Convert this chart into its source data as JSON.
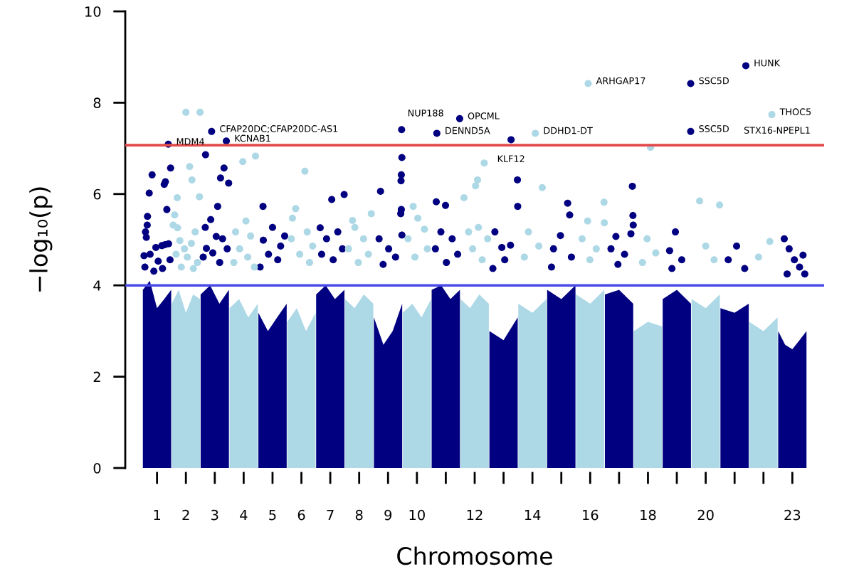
{
  "chart_data": {
    "type": "scatter",
    "xlabel": "Chromosome",
    "ylabel": "−log₁₀(p)",
    "xlim": [
      -0.1,
      24.1
    ],
    "ylim": [
      0,
      10
    ],
    "xticks": [
      1,
      2,
      3,
      4,
      5,
      6,
      7,
      8,
      9,
      10,
      {
        "value": 11,
        "label": null
      },
      12,
      {
        "value": 13,
        "label": null
      },
      14,
      {
        "value": 15,
        "label": null
      },
      16,
      {
        "value": 17,
        "label": null
      },
      18,
      {
        "value": 19,
        "label": null
      },
      20,
      {
        "value": 21,
        "label": null
      },
      {
        "value": 22,
        "label": null
      },
      23
    ],
    "yticks": [
      0,
      2,
      4,
      6,
      8,
      10
    ],
    "grid": false,
    "legend": false,
    "ref_lines": [
      {
        "axis": "y",
        "value": 7.07,
        "color": "#e34a4a",
        "line_style": "solid"
      },
      {
        "axis": "y",
        "value": 4,
        "color": "#4a4ae8",
        "line_style": "solid"
      }
    ],
    "series": [
      {
        "type": "area",
        "color": "#000080",
        "x": [
          0.51,
          0.75,
          1,
          1.25,
          1.49
        ],
        "values": [
          3.9,
          4.1,
          3.5,
          3.7,
          3.9
        ]
      },
      {
        "type": "area",
        "color": "#add8e6",
        "x": [
          1.51,
          1.75,
          2,
          2.25,
          2.49
        ],
        "values": [
          3.6,
          3.9,
          3.4,
          3.8,
          3.7
        ]
      },
      {
        "type": "area",
        "color": "#000080",
        "x": [
          2.51,
          2.84,
          3.16,
          3.49
        ],
        "values": [
          3.8,
          4.0,
          3.6,
          3.9
        ]
      },
      {
        "type": "area",
        "color": "#add8e6",
        "x": [
          3.51,
          3.84,
          4.16,
          4.49
        ],
        "values": [
          3.5,
          3.7,
          3.3,
          3.6
        ]
      },
      {
        "type": "area",
        "color": "#000080",
        "x": [
          4.51,
          4.84,
          5.16,
          5.49
        ],
        "values": [
          3.4,
          3.0,
          3.3,
          3.6
        ]
      },
      {
        "type": "area",
        "color": "#add8e6",
        "x": [
          5.51,
          5.84,
          6.16,
          6.49
        ],
        "values": [
          3.2,
          3.5,
          3.0,
          3.4
        ]
      },
      {
        "type": "area",
        "color": "#000080",
        "x": [
          6.51,
          6.84,
          7.16,
          7.49
        ],
        "values": [
          3.8,
          4.0,
          3.7,
          3.9
        ]
      },
      {
        "type": "area",
        "color": "#add8e6",
        "x": [
          7.51,
          7.84,
          8.16,
          8.49
        ],
        "values": [
          3.7,
          3.5,
          3.8,
          3.6
        ]
      },
      {
        "type": "area",
        "color": "#000080",
        "x": [
          8.51,
          8.84,
          9.16,
          9.49
        ],
        "values": [
          3.3,
          2.7,
          3.0,
          3.6
        ]
      },
      {
        "type": "area",
        "color": "#add8e6",
        "x": [
          9.51,
          9.84,
          10.16,
          10.49
        ],
        "values": [
          3.4,
          3.6,
          3.3,
          3.7
        ]
      },
      {
        "type": "area",
        "color": "#000080",
        "x": [
          10.51,
          10.84,
          11.16,
          11.49
        ],
        "values": [
          3.9,
          4.0,
          3.7,
          3.9
        ]
      },
      {
        "type": "area",
        "color": "#add8e6",
        "x": [
          11.51,
          11.84,
          12.16,
          12.49
        ],
        "values": [
          3.7,
          3.5,
          3.8,
          3.6
        ]
      },
      {
        "type": "area",
        "color": "#000080",
        "x": [
          12.51,
          13,
          13.49
        ],
        "values": [
          3.0,
          2.8,
          3.3
        ]
      },
      {
        "type": "area",
        "color": "#add8e6",
        "x": [
          13.51,
          14,
          14.49
        ],
        "values": [
          3.6,
          3.4,
          3.7
        ]
      },
      {
        "type": "area",
        "color": "#000080",
        "x": [
          14.51,
          15,
          15.49
        ],
        "values": [
          3.9,
          3.7,
          4.0
        ]
      },
      {
        "type": "area",
        "color": "#add8e6",
        "x": [
          15.51,
          16,
          16.49
        ],
        "values": [
          3.8,
          3.6,
          3.9
        ]
      },
      {
        "type": "area",
        "color": "#000080",
        "x": [
          16.51,
          17,
          17.49
        ],
        "values": [
          3.8,
          3.9,
          3.6
        ]
      },
      {
        "type": "area",
        "color": "#add8e6",
        "x": [
          17.51,
          18,
          18.49
        ],
        "values": [
          3.0,
          3.2,
          3.1
        ]
      },
      {
        "type": "area",
        "color": "#000080",
        "x": [
          18.51,
          19,
          19.49
        ],
        "values": [
          3.7,
          3.9,
          3.6
        ]
      },
      {
        "type": "area",
        "color": "#add8e6",
        "x": [
          19.51,
          20,
          20.49
        ],
        "values": [
          3.7,
          3.5,
          3.8
        ]
      },
      {
        "type": "area",
        "color": "#000080",
        "x": [
          20.51,
          21,
          21.49
        ],
        "values": [
          3.5,
          3.4,
          3.6
        ]
      },
      {
        "type": "area",
        "color": "#add8e6",
        "x": [
          21.51,
          22,
          22.49
        ],
        "values": [
          3.2,
          3.0,
          3.3
        ]
      },
      {
        "type": "area",
        "color": "#000080",
        "x": [
          22.51,
          22.75,
          23,
          23.25,
          23.49
        ],
        "values": [
          3.0,
          2.7,
          2.6,
          2.8,
          3.0
        ]
      },
      {
        "color": "#000080",
        "marker": "circle",
        "x": [
          1.39,
          1.47,
          0.83,
          1.25,
          1.29,
          0.73,
          1.34,
          0.67,
          0.66,
          0.6,
          0.63,
          0.96,
          1.17,
          1.28,
          1.4,
          0.55,
          0.76,
          1.04,
          1.45,
          0.58,
          0.89,
          1.19,
          2.89,
          3.4,
          2.68,
          3.32,
          3.48,
          3.2,
          3.1,
          2.86,
          2.67,
          3.05,
          2.71,
          3.27,
          2.6,
          2.93,
          3.43,
          3.17,
          4.67,
          5.0,
          4.68,
          5.28,
          4.86,
          5.18,
          5.42,
          4.57,
          7.05,
          7.48,
          6.65,
          6.87,
          7.26,
          7.42,
          6.7,
          7.1,
          9.47,
          8.74,
          9.48,
          9.46,
          9.45,
          9.46,
          9.44,
          9.48,
          8.69,
          9.02,
          9.26,
          8.83,
          10.69,
          11.48,
          10.67,
          10.99,
          10.83,
          11.22,
          10.64,
          11.41,
          11.02,
          13.26,
          13.48,
          13.49,
          12.94,
          13.24,
          12.7,
          13.04,
          12.63,
          15.22,
          15.29,
          14.97,
          14.73,
          15.35,
          14.66,
          17.46,
          17.48,
          17.49,
          16.89,
          17.41,
          16.72,
          17.19,
          16.96,
          19.48,
          19.48,
          18.95,
          18.75,
          19.17,
          18.83,
          21.39,
          21.07,
          20.78,
          21.35,
          23.37,
          22.72,
          22.89,
          23.07,
          23.25,
          22.82,
          23.43
        ],
        "values": [
          7.09,
          6.57,
          6.42,
          6.21,
          6.27,
          6.02,
          5.66,
          5.51,
          5.32,
          5.17,
          5.05,
          4.83,
          4.87,
          4.89,
          4.91,
          4.65,
          4.68,
          4.53,
          4.56,
          4.4,
          4.31,
          4.37,
          7.37,
          7.16,
          6.86,
          6.57,
          6.24,
          6.35,
          5.73,
          5.44,
          5.27,
          5.07,
          4.81,
          5.02,
          4.62,
          4.71,
          4.8,
          4.5,
          5.73,
          5.27,
          4.99,
          4.86,
          4.68,
          4.56,
          5.08,
          4.4,
          5.88,
          5.99,
          5.26,
          5.02,
          5.17,
          4.8,
          4.68,
          4.56,
          7.41,
          6.06,
          6.8,
          6.42,
          6.29,
          5.66,
          5.57,
          5.1,
          5.02,
          4.8,
          4.62,
          4.46,
          7.33,
          7.65,
          5.83,
          5.75,
          5.17,
          5.02,
          4.8,
          4.68,
          4.5,
          7.19,
          6.31,
          5.73,
          4.83,
          4.88,
          5.17,
          4.56,
          4.37,
          5.8,
          5.54,
          5.09,
          4.8,
          4.62,
          4.4,
          6.17,
          5.53,
          5.32,
          5.07,
          5.13,
          4.8,
          4.68,
          4.46,
          8.42,
          7.37,
          5.17,
          4.76,
          4.56,
          4.37,
          8.81,
          4.86,
          4.56,
          4.37,
          4.66,
          5.02,
          4.8,
          4.56,
          4.4,
          4.25,
          4.25
        ]
      },
      {
        "color": "#add8e6",
        "marker": "circle",
        "x": [
          2.0,
          2.49,
          2.13,
          2.21,
          2.47,
          1.7,
          1.61,
          1.56,
          1.71,
          1.79,
          1.95,
          2.19,
          2.32,
          2.05,
          1.66,
          2.4,
          1.84,
          2.26,
          3.97,
          4.41,
          4.08,
          3.72,
          4.24,
          3.86,
          4.14,
          3.66,
          4.37,
          6.12,
          5.8,
          5.69,
          6.2,
          5.65,
          6.39,
          5.94,
          6.28,
          8.42,
          7.77,
          7.85,
          8.15,
          7.63,
          8.32,
          7.97,
          9.87,
          10.03,
          10.26,
          9.69,
          10.36,
          9.93,
          12.33,
          12.1,
          12.03,
          11.63,
          12.13,
          12.45,
          11.79,
          11.93,
          12.26,
          14.1,
          14.34,
          13.86,
          14.22,
          13.72,
          15.93,
          16.48,
          15.91,
          16.49,
          15.72,
          16.21,
          15.99,
          18.09,
          17.97,
          18.27,
          17.81,
          19.79,
          20.48,
          20.0,
          20.29,
          22.29,
          22.22,
          21.83
        ],
        "values": [
          7.79,
          7.79,
          6.6,
          6.31,
          5.94,
          5.92,
          5.54,
          5.32,
          5.26,
          4.98,
          4.8,
          4.92,
          5.17,
          4.62,
          4.68,
          4.5,
          4.4,
          4.37,
          6.71,
          6.83,
          5.41,
          5.17,
          5.08,
          4.8,
          4.62,
          4.5,
          4.4,
          6.5,
          5.68,
          5.47,
          5.17,
          5.02,
          4.86,
          4.68,
          4.5,
          5.57,
          5.42,
          5.27,
          5.02,
          4.8,
          4.68,
          4.5,
          5.73,
          5.47,
          5.23,
          5.02,
          4.8,
          4.62,
          6.68,
          6.31,
          6.18,
          5.92,
          5.27,
          5.02,
          5.17,
          4.8,
          4.56,
          7.33,
          6.14,
          5.17,
          4.86,
          4.62,
          8.42,
          5.82,
          5.41,
          5.37,
          5.02,
          4.8,
          4.56,
          7.02,
          5.02,
          4.71,
          4.5,
          5.85,
          5.76,
          4.86,
          4.56,
          7.74,
          4.96,
          4.62
        ]
      }
    ],
    "annotations": [
      {
        "text": "MDM4",
        "x": 1.39,
        "y": 7.09
      },
      {
        "text": "CFAP20DC;CFAP20DC-AS1",
        "x": 2.89,
        "y": 7.37
      },
      {
        "text": "KCNAB1",
        "x": 3.4,
        "y": 7.16
      },
      {
        "text": "NUP188",
        "x": 9.47,
        "y": 7.41
      },
      {
        "text": "DENND5A",
        "x": 10.69,
        "y": 7.33
      },
      {
        "text": "OPCML",
        "x": 11.48,
        "y": 7.65
      },
      {
        "text": "DDHD1-DT",
        "x": 14.1,
        "y": 7.33
      },
      {
        "text": "KLF12",
        "x": 13.26,
        "y": 7.19
      },
      {
        "text": "ARHGAP17",
        "x": 15.93,
        "y": 8.42
      },
      {
        "text": "SSC5D",
        "x": 19.48,
        "y": 8.42
      },
      {
        "text": "HUNK",
        "x": 21.39,
        "y": 8.81
      },
      {
        "text": "THOC5",
        "x": 22.29,
        "y": 7.74
      },
      "STX16-NPEPL1",
      {
        "text": "SSC5D",
        "x": 19.48,
        "y": 7.37
      }
    ]
  }
}
